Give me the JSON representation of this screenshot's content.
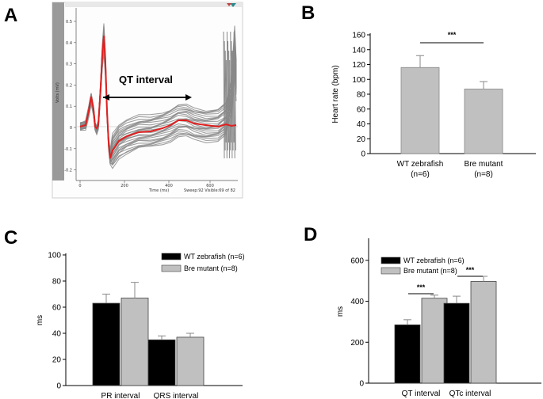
{
  "panels": {
    "a": "A",
    "b": "B",
    "c": "C",
    "d": "D"
  },
  "colors": {
    "wt": "#000000",
    "mutant": "#c0c0c0",
    "trace": "#888888",
    "mean_trace": "#e02020",
    "ecg_sidebar": "#9a9a9a"
  },
  "ecg_trace": {
    "annotation": "QT interval",
    "x_axis_label": "Time (ms)",
    "y_axis_label": "Volts (mV)",
    "sweep_info": "Sweep:92 Visible:69 of 82",
    "x_ticks": [
      "0",
      "200",
      "400",
      "600"
    ],
    "y_ticks": [
      "0.5",
      "0.4",
      "0.3",
      "0.2",
      "0.1",
      "0",
      "-0.1",
      "-0.2"
    ]
  },
  "chart_data": [
    {
      "panel": "B",
      "type": "bar",
      "categories": [
        "WT zebrafish",
        "Bre mutant"
      ],
      "category_sublabels": [
        "(n=6)",
        "(n=8)"
      ],
      "values": [
        116,
        87
      ],
      "errors": [
        16,
        10
      ],
      "ylabel": "Heart rate (bpm)",
      "ylim": [
        0,
        160
      ],
      "yticks": [
        "0",
        "20",
        "40",
        "60",
        "80",
        "100",
        "120",
        "140",
        "160"
      ],
      "significance": "***"
    },
    {
      "panel": "C",
      "type": "bar",
      "categories": [
        "PR interval",
        "QRS interval"
      ],
      "series": [
        {
          "name": "WT zebrafish (n=6)",
          "values": [
            63,
            35
          ],
          "errors": [
            7,
            3
          ]
        },
        {
          "name": "Bre mutant (n=8)",
          "values": [
            67,
            37
          ],
          "errors": [
            12,
            3
          ]
        }
      ],
      "ylabel": "ms",
      "ylim": [
        0,
        100
      ],
      "yticks": [
        "0",
        "20",
        "40",
        "60",
        "80",
        "100"
      ]
    },
    {
      "panel": "D",
      "type": "bar",
      "categories": [
        "QT interval",
        "QTc interval"
      ],
      "series": [
        {
          "name": "WT zebrafish (n=6)",
          "values": [
            285,
            390
          ],
          "errors": [
            25,
            35
          ]
        },
        {
          "name": "Bre mutant (n=8)",
          "values": [
            415,
            497
          ],
          "errors": [
            15,
            25
          ]
        }
      ],
      "ylabel": "ms",
      "ylim": [
        0,
        700
      ],
      "yticks": [
        "0",
        "200",
        "400",
        "600"
      ],
      "significance": [
        "***",
        "***"
      ]
    }
  ]
}
